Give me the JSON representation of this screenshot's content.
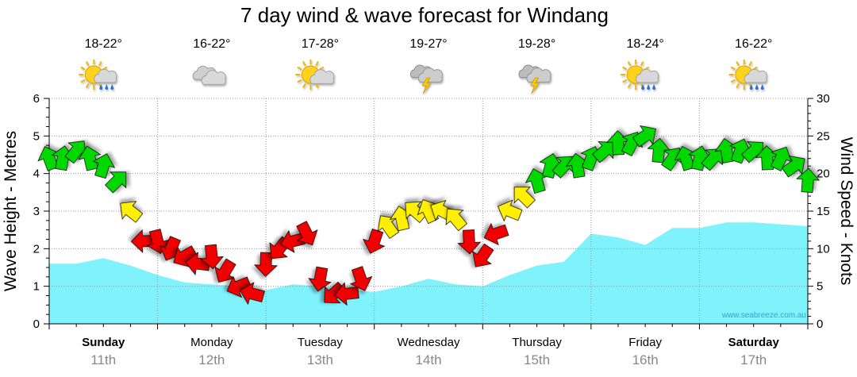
{
  "chart_data": {
    "type": "area",
    "title": "7 day wind & wave forecast for Windang",
    "ylabel_left": "Wave Height - Metres",
    "ylabel_right": "Wind Speed - Knots",
    "ylim_left": [
      0,
      6
    ],
    "ylim_right": [
      0,
      30
    ],
    "yticks_left": [
      "0",
      "1",
      "2",
      "3",
      "4",
      "5",
      "6"
    ],
    "yticks_right": [
      "0",
      "5",
      "10",
      "15",
      "20",
      "25",
      "30"
    ],
    "days": [
      {
        "name": "Sunday",
        "date": "11th",
        "bold": true
      },
      {
        "name": "Monday",
        "date": "12th",
        "bold": false
      },
      {
        "name": "Tuesday",
        "date": "13th",
        "bold": false
      },
      {
        "name": "Wednesday",
        "date": "14th",
        "bold": false
      },
      {
        "name": "Thursday",
        "date": "15th",
        "bold": false
      },
      {
        "name": "Friday",
        "date": "16th",
        "bold": false
      },
      {
        "name": "Saturday",
        "date": "17th",
        "bold": true
      }
    ],
    "temperatures": [
      "18-22°",
      "16-22°",
      "17-28°",
      "19-27°",
      "19-28°",
      "18-24°",
      "16-22°"
    ],
    "weather_icons": [
      "sun-cloud-rain-icon",
      "cloud-icon",
      "sun-cloud-icon",
      "cloud-storm-icon",
      "cloud-storm-icon",
      "sun-cloud-rain-icon",
      "sun-cloud-rain-icon"
    ],
    "wave_series": {
      "name": "Wave Height (m)",
      "x_hours": [
        0,
        6,
        12,
        18,
        24,
        30,
        36,
        42,
        48,
        54,
        60,
        66,
        72,
        78,
        84,
        90,
        96,
        102,
        108,
        114,
        120,
        126,
        132,
        138,
        144,
        150,
        156,
        162,
        168
      ],
      "values": [
        1.6,
        1.6,
        1.75,
        1.55,
        1.3,
        1.1,
        1.05,
        1.0,
        0.9,
        1.05,
        1.0,
        0.9,
        0.85,
        1.0,
        1.2,
        1.05,
        1.0,
        1.3,
        1.55,
        1.65,
        2.4,
        2.3,
        2.1,
        2.55,
        2.55,
        2.7,
        2.7,
        2.65,
        2.6
      ]
    },
    "wind_series": {
      "name": "Wind Speed (knots)",
      "x_hours": [
        0,
        3,
        6,
        9,
        12,
        15,
        18,
        21,
        24,
        27,
        30,
        33,
        36,
        39,
        42,
        45,
        48,
        51,
        54,
        57,
        60,
        63,
        66,
        69,
        72,
        75,
        78,
        81,
        84,
        87,
        90,
        93,
        96,
        99,
        102,
        105,
        108,
        111,
        114,
        117,
        120,
        123,
        126,
        129,
        132,
        135,
        138,
        141,
        144,
        147,
        150,
        153,
        156,
        159,
        162,
        165,
        168
      ],
      "values": [
        22,
        22,
        23,
        22,
        21,
        19,
        15,
        11,
        11,
        10,
        9,
        8,
        9,
        7,
        5,
        4,
        8,
        10,
        11,
        12,
        6,
        4,
        4,
        6,
        11,
        13,
        14,
        15,
        15,
        15,
        14,
        11,
        9,
        12,
        15,
        17,
        19,
        21,
        21,
        21,
        22,
        23,
        24,
        24,
        25,
        23,
        22,
        22,
        22,
        22,
        23,
        23,
        23,
        22,
        22,
        21,
        19
      ],
      "colour_bands": {
        "green": "> 18 kt",
        "yellow": "13 - 18 kt",
        "red": "< 13 kt"
      }
    }
  },
  "colors": {
    "wave_fill": "#7ff2fb",
    "wind_green": "#00d800",
    "wind_yellow": "#ffef00",
    "wind_red": "#f20000",
    "grid": "#999999"
  },
  "watermark": "www.seabreeze.com.au"
}
